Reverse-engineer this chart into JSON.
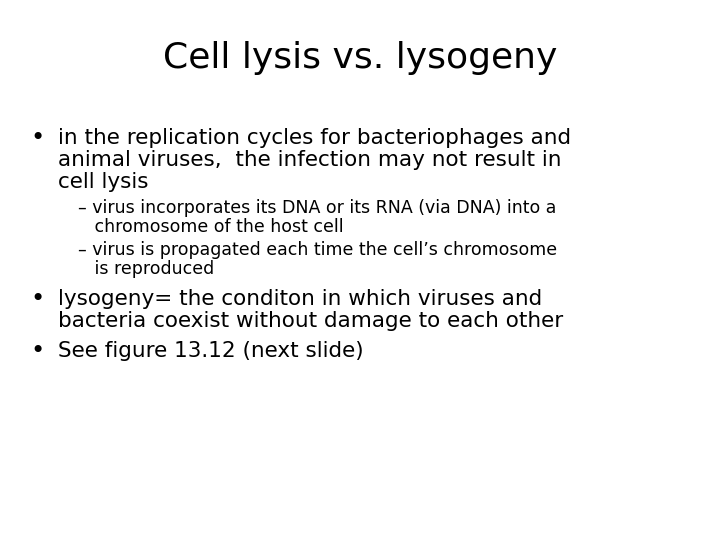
{
  "title": "Cell lysis vs. lysogeny",
  "title_fontsize": 26,
  "background_color": "#ffffff",
  "text_color": "#000000",
  "bullet1_line1": "in the replication cycles for bacteriophages and",
  "bullet1_line2": "animal viruses,  the infection may not result in",
  "bullet1_line3": "cell lysis",
  "sub1_line1": "– virus incorporates its DNA or its RNA (via DNA) into a",
  "sub1_line2": "   chromosome of the host cell",
  "sub2_line1": "– virus is propagated each time the cell’s chromosome",
  "sub2_line2": "   is reproduced",
  "bullet2_line1": "lysogeny= the conditon in which viruses and",
  "bullet2_line2": "bacteria coexist without damage to each other",
  "bullet3": "See figure 13.12 (next slide)",
  "bullet_fontsize": 15.5,
  "sub_fontsize": 12.5,
  "bullet3_fontsize": 15.5
}
